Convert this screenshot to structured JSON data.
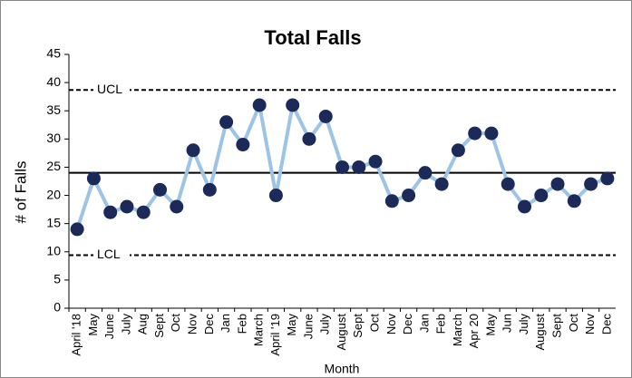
{
  "chart_data": {
    "type": "line",
    "title": "Total Falls",
    "x_label": "Month",
    "y_label": "# of Falls",
    "categories": [
      "April '18",
      "May",
      "June",
      "July",
      "Aug",
      "Sept",
      "Oct",
      "Nov",
      "Dec",
      "Jan",
      "Feb",
      "March",
      "April '19",
      "May",
      "June",
      "July",
      "August",
      "Sept",
      "Oct",
      "Nov",
      "Dec",
      "Jan",
      "Feb",
      "March",
      "Apr 20",
      "May",
      "Jun",
      "July",
      "August",
      "Sept",
      "Oct",
      "Nov",
      "Dec"
    ],
    "values": [
      14,
      23,
      17,
      18,
      17,
      21,
      18,
      28,
      21,
      33,
      29,
      36,
      20,
      36,
      30,
      34,
      25,
      25,
      26,
      19,
      20,
      24,
      22,
      28,
      31,
      31,
      22,
      18,
      20,
      22,
      19,
      22,
      23
    ],
    "line_color": "#9dc3e6",
    "marker_color": "#1c2a5a",
    "center_line": 24,
    "ucl": 38.7,
    "ucl_label": "UCL",
    "lcl": 9.4,
    "lcl_label": "LCL",
    "ylim": [
      0,
      45
    ],
    "yticks": [
      0,
      5,
      10,
      15,
      20,
      25,
      30,
      35,
      40,
      45
    ]
  }
}
